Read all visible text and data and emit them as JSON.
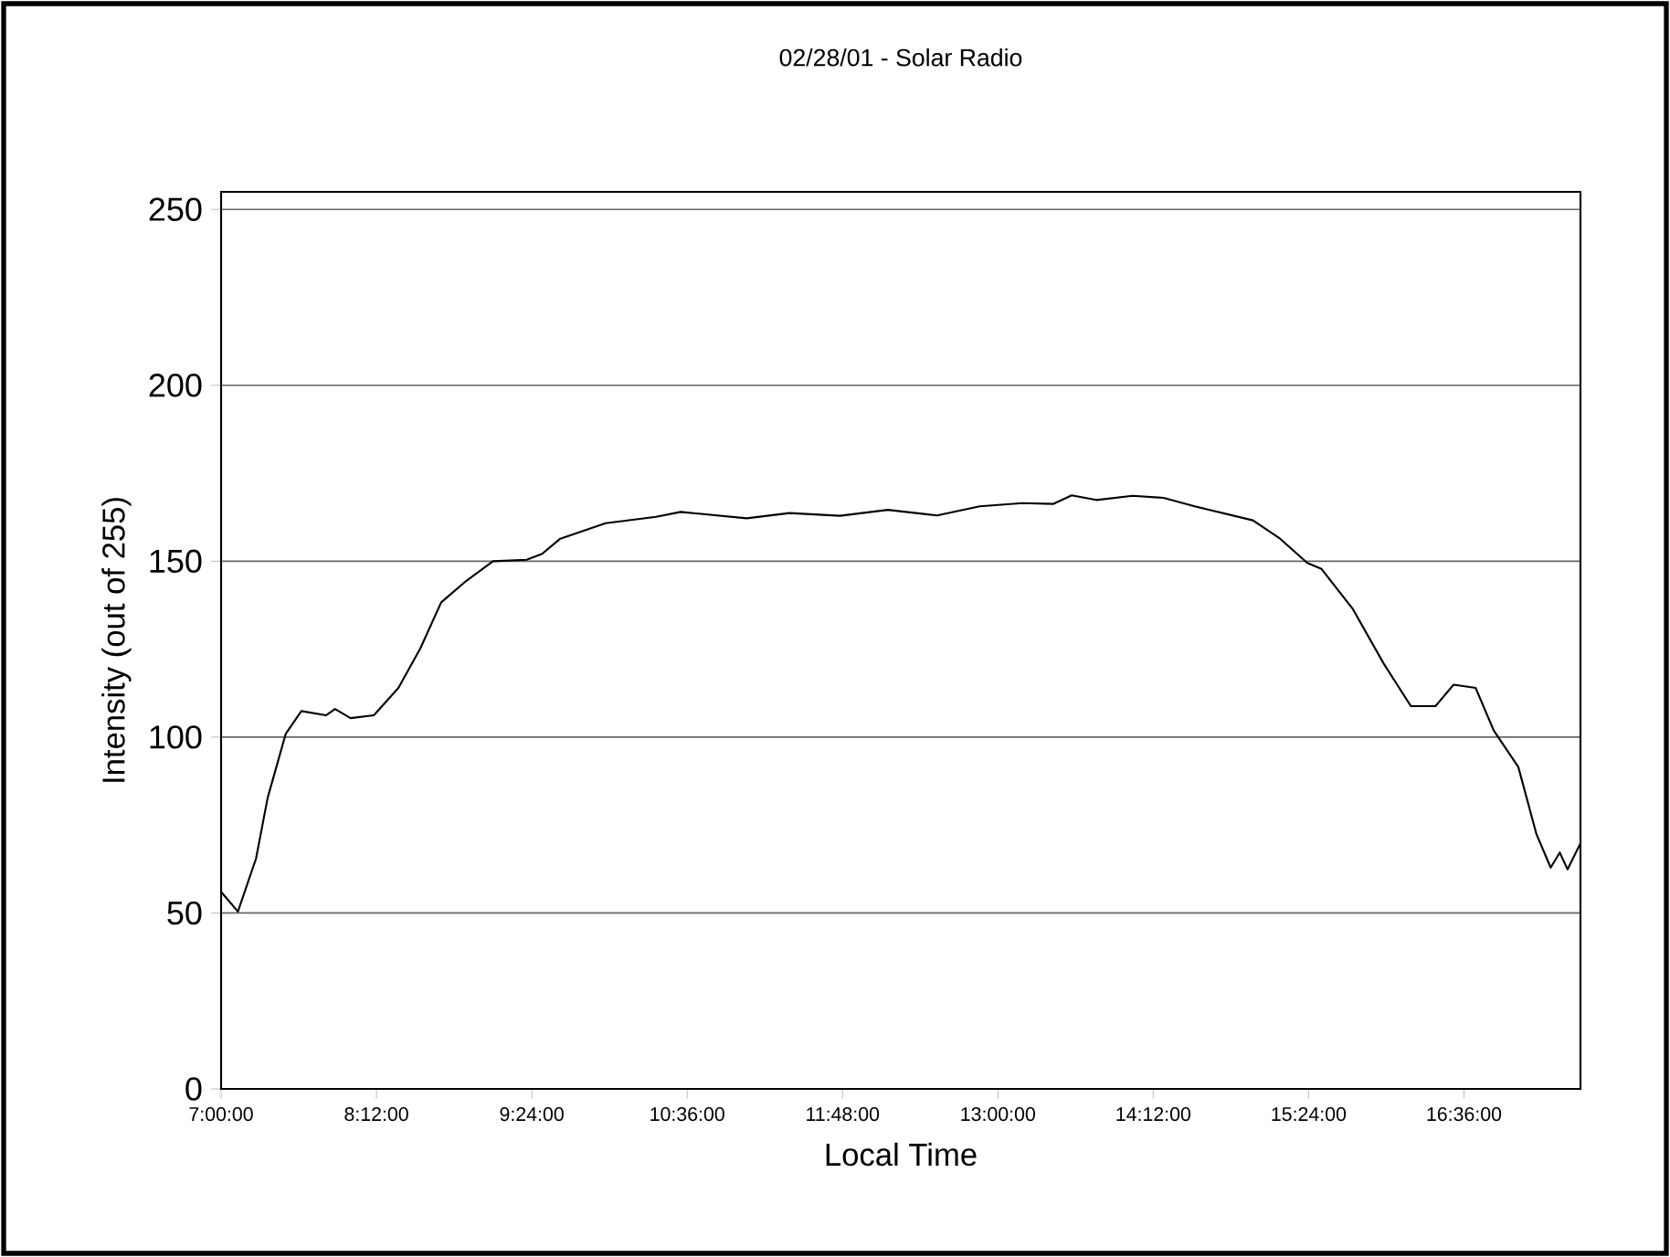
{
  "chart_data": {
    "type": "line",
    "title": "02/28/01 - Solar Radio",
    "xlabel": "Local Time",
    "ylabel": "Intensity (out of 255)",
    "xlim": [
      7,
      17.5
    ],
    "ylim": [
      0,
      255
    ],
    "xticks": [
      {
        "value": 7,
        "label": "7:00:00"
      },
      {
        "value": 8.2,
        "label": "8:12:00"
      },
      {
        "value": 9.4,
        "label": "9:24:00"
      },
      {
        "value": 10.6,
        "label": "10:36:00"
      },
      {
        "value": 11.8,
        "label": "11:48:00"
      },
      {
        "value": 13,
        "label": "13:00:00"
      },
      {
        "value": 14.2,
        "label": "14:12:00"
      },
      {
        "value": 15.4,
        "label": "15:24:00"
      },
      {
        "value": 16.6,
        "label": "16:36:00"
      }
    ],
    "yticks": [
      0,
      50,
      100,
      150,
      200,
      250
    ],
    "grid": "y",
    "series": [
      {
        "color": "#000000",
        "x": [
          7.0,
          7.13,
          7.27,
          7.36,
          7.5,
          7.62,
          7.81,
          7.88,
          8.0,
          8.18,
          8.37,
          8.54,
          8.7,
          8.89,
          9.1,
          9.36,
          9.48,
          9.62,
          9.97,
          10.36,
          10.55,
          11.06,
          11.39,
          11.78,
          12.15,
          12.53,
          12.86,
          13.19,
          13.43,
          13.57,
          13.76,
          14.04,
          14.28,
          14.52,
          14.97,
          15.18,
          15.39,
          15.5,
          15.74,
          15.98,
          16.19,
          16.38,
          16.52,
          16.69,
          16.83,
          17.02,
          17.16,
          17.27,
          17.34,
          17.4,
          17.5
        ],
        "values": [
          56,
          50.4,
          65.5,
          82.8,
          101,
          107.4,
          106.2,
          108,
          105.4,
          106.2,
          114,
          125.3,
          138.3,
          144.3,
          150,
          150.4,
          152.1,
          156.4,
          160.8,
          162.6,
          164,
          162.2,
          163.7,
          162.9,
          164.6,
          163,
          165.6,
          166.5,
          166.3,
          168.7,
          167.4,
          168.6,
          168,
          165.6,
          161.6,
          156.4,
          149.5,
          147.8,
          136.5,
          120.9,
          108.8,
          108.8,
          114.9,
          114,
          101.9,
          91.5,
          72.4,
          62.9,
          67.2,
          62.4,
          69.8
        ]
      }
    ]
  }
}
